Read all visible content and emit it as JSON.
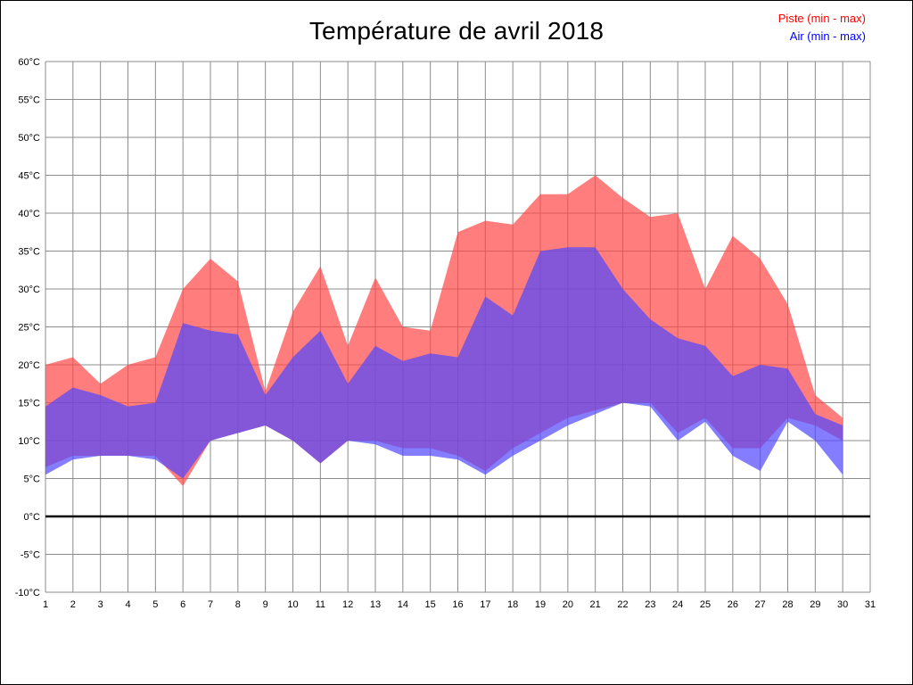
{
  "title": "Température de avril 2018",
  "legend": [
    {
      "label": "Piste (min - max)",
      "color": "#ff0000"
    },
    {
      "label": "Air (min - max)",
      "color": "#0000ff"
    }
  ],
  "chart_data": {
    "type": "area",
    "title": "Température de avril 2018",
    "xlabel": "",
    "ylabel": "",
    "x": [
      1,
      2,
      3,
      4,
      5,
      6,
      7,
      8,
      9,
      10,
      11,
      12,
      13,
      14,
      15,
      16,
      17,
      18,
      19,
      20,
      21,
      22,
      23,
      24,
      25,
      26,
      27,
      28,
      29,
      30
    ],
    "x_ticks": [
      1,
      2,
      3,
      4,
      5,
      6,
      7,
      8,
      9,
      10,
      11,
      12,
      13,
      14,
      15,
      16,
      17,
      18,
      19,
      20,
      21,
      22,
      23,
      24,
      25,
      26,
      27,
      28,
      29,
      30,
      31
    ],
    "xlim": [
      1,
      31
    ],
    "ylim": [
      -10,
      60
    ],
    "ytick_step": 5,
    "ytick_suffix": "°C",
    "grid": true,
    "zero_line": true,
    "legend_position": "top-right",
    "series": [
      {
        "name": "Piste (min - max)",
        "legend_color": "#ff0000",
        "fill": "#ff4646",
        "fill_opacity": 0.7,
        "max": [
          20,
          21,
          17.5,
          20,
          21,
          30,
          34,
          31,
          16.5,
          27,
          33,
          22.5,
          31.5,
          25,
          24.5,
          37.5,
          39,
          38.5,
          42.5,
          42.5,
          45,
          42,
          39.5,
          40,
          30,
          37,
          34,
          28,
          16,
          13
        ],
        "min": [
          6.5,
          8,
          8,
          8,
          8,
          4,
          10,
          11,
          12,
          10,
          7,
          10,
          10,
          9,
          9,
          8,
          6,
          9,
          11,
          13,
          14,
          15,
          15,
          11,
          13,
          9,
          9,
          13,
          12,
          10
        ]
      },
      {
        "name": "Air (min - max)",
        "legend_color": "#0000ff",
        "fill": "#5046ff",
        "fill_opacity": 0.7,
        "max": [
          14.5,
          17,
          16,
          14.5,
          15,
          25.5,
          24.5,
          24,
          16,
          21,
          24.5,
          17.5,
          22.5,
          20.5,
          21.5,
          21,
          29,
          26.5,
          35,
          35.5,
          35.5,
          30,
          26,
          23.5,
          22.5,
          18.5,
          20,
          19.5,
          13.5,
          12
        ],
        "min": [
          5.5,
          7.5,
          8,
          8,
          7.5,
          5,
          10,
          11,
          12,
          10,
          7,
          10,
          9.5,
          8,
          8,
          7.5,
          5.5,
          8,
          10,
          12,
          13.5,
          15,
          14.5,
          10,
          12.5,
          8,
          6,
          12.5,
          10,
          5.5
        ]
      }
    ]
  }
}
